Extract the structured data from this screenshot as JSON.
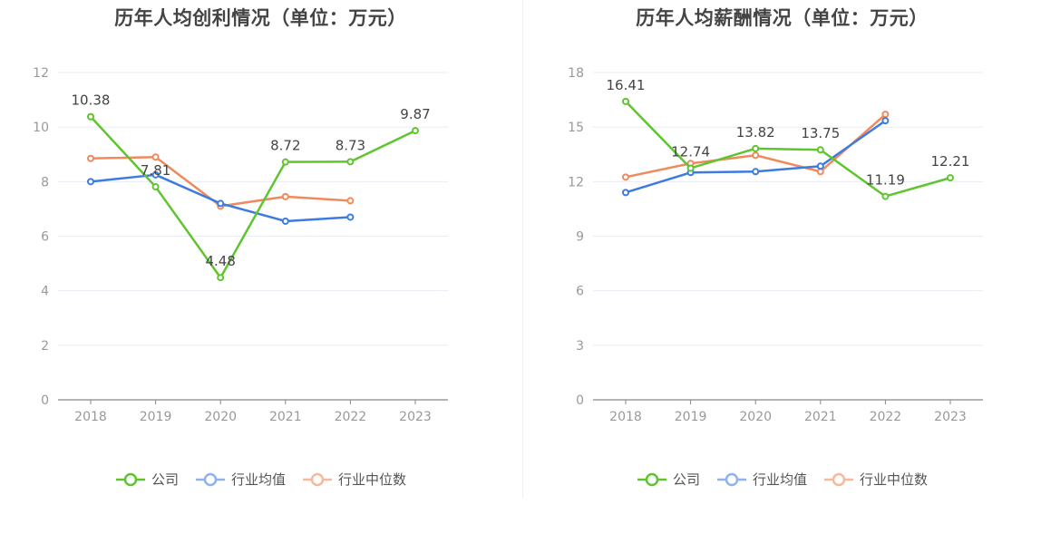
{
  "colors": {
    "company": "#5fc52e",
    "industry_avg": "#3d7be0",
    "industry_median": "#f08a5d",
    "grid": "#e8ebf3",
    "axis": "#888888",
    "tick": "#999999",
    "label": "#444444"
  },
  "legend": [
    "公司",
    "行业均值",
    "行业中位数"
  ],
  "chart_data": [
    {
      "type": "line",
      "title": "历年人均创利情况（单位：万元）",
      "categories": [
        "2018",
        "2019",
        "2020",
        "2021",
        "2022",
        "2023"
      ],
      "ylim": [
        0,
        12
      ],
      "yticks": [
        0,
        2,
        4,
        6,
        8,
        10,
        12
      ],
      "grid": true,
      "legend_position": "bottom",
      "series": [
        {
          "name": "公司",
          "values": [
            10.38,
            7.81,
            4.48,
            8.72,
            8.73,
            9.87
          ],
          "labels": [
            "10.38",
            "7.81",
            "4.48",
            "8.72",
            "8.73",
            "9.87"
          ]
        },
        {
          "name": "行业均值",
          "values": [
            8.0,
            8.25,
            7.2,
            6.55,
            6.7,
            null
          ]
        },
        {
          "name": "行业中位数",
          "values": [
            8.85,
            8.9,
            7.1,
            7.45,
            7.3,
            null
          ]
        }
      ]
    },
    {
      "type": "line",
      "title": "历年人均薪酬情况（单位：万元）",
      "categories": [
        "2018",
        "2019",
        "2020",
        "2021",
        "2022",
        "2023"
      ],
      "ylim": [
        0,
        18
      ],
      "yticks": [
        0,
        3,
        6,
        9,
        12,
        15,
        18
      ],
      "grid": true,
      "legend_position": "bottom",
      "series": [
        {
          "name": "公司",
          "values": [
            16.41,
            12.74,
            13.82,
            13.75,
            11.19,
            12.21
          ],
          "labels": [
            "16.41",
            "12.74",
            "13.82",
            "13.75",
            "11.19",
            "12.21"
          ]
        },
        {
          "name": "行业均值",
          "values": [
            11.4,
            12.5,
            12.55,
            12.85,
            15.35,
            null
          ]
        },
        {
          "name": "行业中位数",
          "values": [
            12.25,
            13.0,
            13.45,
            12.55,
            15.7,
            null
          ]
        }
      ]
    }
  ]
}
